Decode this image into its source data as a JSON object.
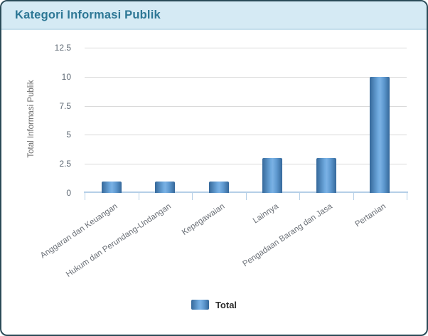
{
  "header": {
    "title": "Kategori Informasi Publik"
  },
  "colors": {
    "header_bg": "#d5eaf4",
    "title_text": "#2d7795",
    "card_border": "#2a4a57",
    "bar_edge": "#35689a",
    "bar_mid": "#7ab1e4",
    "bar_light": "#6ea9de",
    "axis_line": "#b5cfe7",
    "gridline": "#d9d9d9",
    "tick_text": "#5f6a75",
    "category_text": "#6a6f76",
    "legend_text": "#2b2b2b"
  },
  "chart_data": {
    "type": "bar",
    "title": "Kategori Informasi Publik",
    "categories": [
      "Anggaran dan Keuangan",
      "Hukum dan Perundang-Undangan",
      "Kepegawaian",
      "Lainnya",
      "Pengadaan Barang dan Jasa",
      "Pertanian"
    ],
    "series": [
      {
        "name": "Total",
        "values": [
          1,
          1,
          1,
          3,
          3,
          10
        ]
      }
    ],
    "xlabel": "",
    "ylabel": "Total Informasi Publik",
    "yticks": [
      0,
      2.5,
      5,
      7.5,
      10,
      12.5
    ],
    "ylim": [
      0,
      12.5
    ],
    "grid": true,
    "legend_position": "bottom"
  },
  "legend": {
    "label": "Total"
  }
}
